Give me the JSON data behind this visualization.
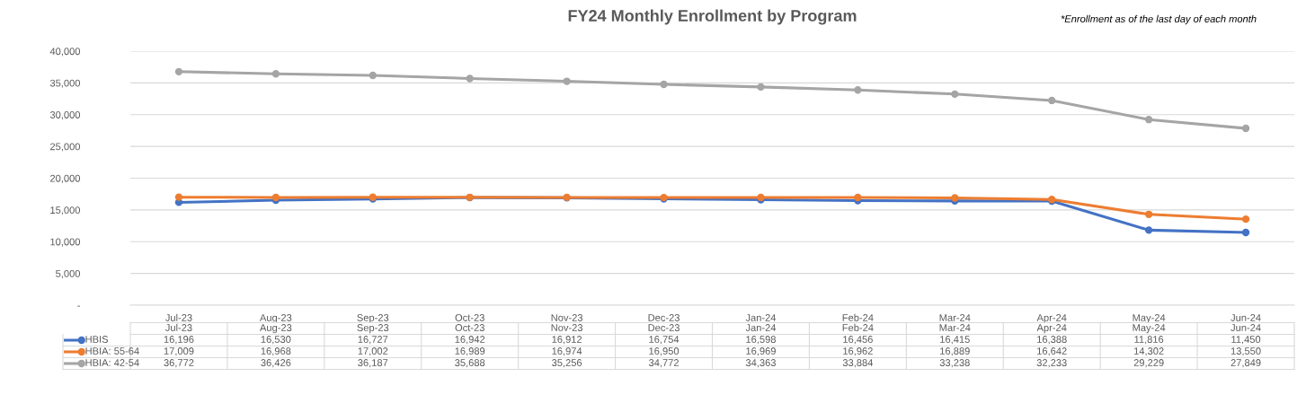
{
  "chart_data": {
    "type": "line",
    "title": "FY24 Monthly Enrollment by Program",
    "annotations": [
      "*Enrollment as of the last day of each month"
    ],
    "categories": [
      "Jul-23",
      "Aug-23",
      "Sep-23",
      "Oct-23",
      "Nov-23",
      "Dec-23",
      "Jan-24",
      "Feb-24",
      "Mar-24",
      "Apr-24",
      "May-24",
      "Jun-24"
    ],
    "series": [
      {
        "name": "HBIS",
        "color": "#4472c4",
        "values": [
          16196,
          16530,
          16727,
          16942,
          16912,
          16754,
          16598,
          16456,
          16415,
          16388,
          11816,
          11450
        ],
        "value_labels": [
          "16,196",
          "16,530",
          "16,727",
          "16,942",
          "16,912",
          "16,754",
          "16,598",
          "16,456",
          "16,415",
          "16,388",
          "11,816",
          "11,450"
        ]
      },
      {
        "name": "HBIA: 55-64",
        "color": "#ed7d31",
        "values": [
          17009,
          16968,
          17002,
          16989,
          16974,
          16950,
          16969,
          16962,
          16889,
          16642,
          14302,
          13550
        ],
        "value_labels": [
          "17,009",
          "16,968",
          "17,002",
          "16,989",
          "16,974",
          "16,950",
          "16,969",
          "16,962",
          "16,889",
          "16,642",
          "14,302",
          "13,550"
        ]
      },
      {
        "name": "HBIA: 42-54",
        "color": "#a5a5a5",
        "values": [
          36772,
          36426,
          36187,
          35688,
          35256,
          34772,
          34363,
          33884,
          33238,
          32233,
          29229,
          27849
        ],
        "value_labels": [
          "36,772",
          "36,426",
          "36,187",
          "35,688",
          "35,256",
          "34,772",
          "34,363",
          "33,884",
          "33,238",
          "32,233",
          "29,229",
          "27,849"
        ]
      }
    ],
    "ylim": [
      0,
      40000
    ],
    "yticks": [
      {
        "value": 0,
        "label": "-"
      },
      {
        "value": 5000,
        "label": "5,000"
      },
      {
        "value": 10000,
        "label": "10,000"
      },
      {
        "value": 15000,
        "label": "15,000"
      },
      {
        "value": 20000,
        "label": "20,000"
      },
      {
        "value": 25000,
        "label": "25,000"
      },
      {
        "value": 30000,
        "label": "30,000"
      },
      {
        "value": 35000,
        "label": "35,000"
      },
      {
        "value": 40000,
        "label": "40,000"
      }
    ],
    "grid": "y",
    "marker": "circle",
    "line_style": "solid",
    "legend": "bottom"
  }
}
